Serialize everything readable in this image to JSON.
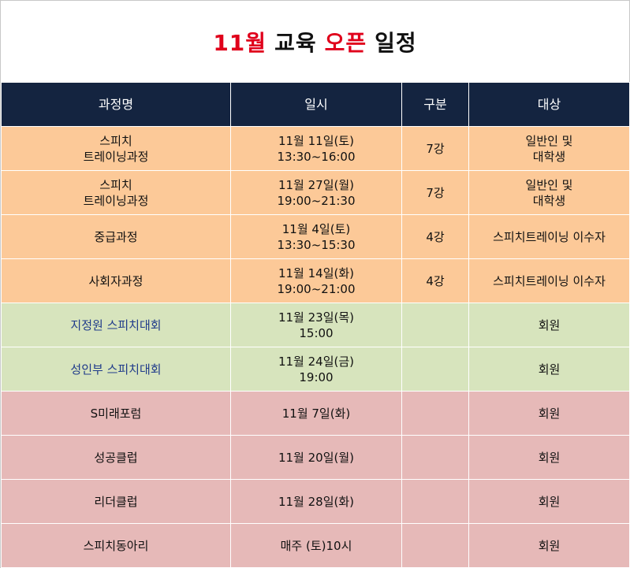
{
  "title": {
    "part1": "11월",
    "part2": "교육",
    "part3": "오픈",
    "part4": "일정"
  },
  "headers": [
    "과정명",
    "일시",
    "구분",
    "대상"
  ],
  "rows": [
    {
      "group": "orange",
      "name": [
        "스피치",
        "트레이닝과정"
      ],
      "date": [
        "11월 11일(토)",
        "13:30~16:00"
      ],
      "type": "7강",
      "target": [
        "일반인 및",
        "대학생"
      ]
    },
    {
      "group": "orange",
      "name": [
        "스피치",
        "트레이닝과정"
      ],
      "date": [
        "11월 27일(월)",
        "19:00~21:30"
      ],
      "type": "7강",
      "target": [
        "일반인 및",
        "대학생"
      ]
    },
    {
      "group": "orange",
      "name": [
        "중급과정"
      ],
      "date": [
        "11월 4일(토)",
        "13:30~15:30"
      ],
      "type": "4강",
      "target": [
        "스피치트레이닝 이수자"
      ]
    },
    {
      "group": "orange",
      "name": [
        "사회자과정"
      ],
      "date": [
        "11월 14일(화)",
        "19:00~21:00"
      ],
      "type": "4강",
      "target": [
        "스피치트레이닝 이수자"
      ]
    },
    {
      "group": "green",
      "name": [
        "지정원 스피치대회"
      ],
      "date": [
        "11월 23일(목)",
        "15:00"
      ],
      "type": "",
      "target": [
        "회원"
      ]
    },
    {
      "group": "green",
      "name": [
        "성인부 스피치대회"
      ],
      "date": [
        "11월 24일(금)",
        "19:00"
      ],
      "type": "",
      "target": [
        "회원"
      ]
    },
    {
      "group": "pink",
      "name": [
        "S미래포럼"
      ],
      "date": [
        "11월 7일(화)"
      ],
      "type": "",
      "target": [
        "회원"
      ]
    },
    {
      "group": "pink",
      "name": [
        "성공클럽"
      ],
      "date": [
        "11월 20일(월)"
      ],
      "type": "",
      "target": [
        "회원"
      ]
    },
    {
      "group": "pink",
      "name": [
        "리더클럽"
      ],
      "date": [
        "11월 28일(화)"
      ],
      "type": "",
      "target": [
        "회원"
      ]
    },
    {
      "group": "pink",
      "name": [
        "스피치동아리"
      ],
      "date": [
        "매주 (토)10시"
      ],
      "type": "",
      "target": [
        "회원"
      ]
    }
  ],
  "colors": {
    "header_bg": "#142440",
    "orange": "#fcc998",
    "green": "#d7e4bd",
    "pink": "#e6b9b8",
    "title_red": "#e0001b",
    "green_text": "#1f3a8a"
  }
}
